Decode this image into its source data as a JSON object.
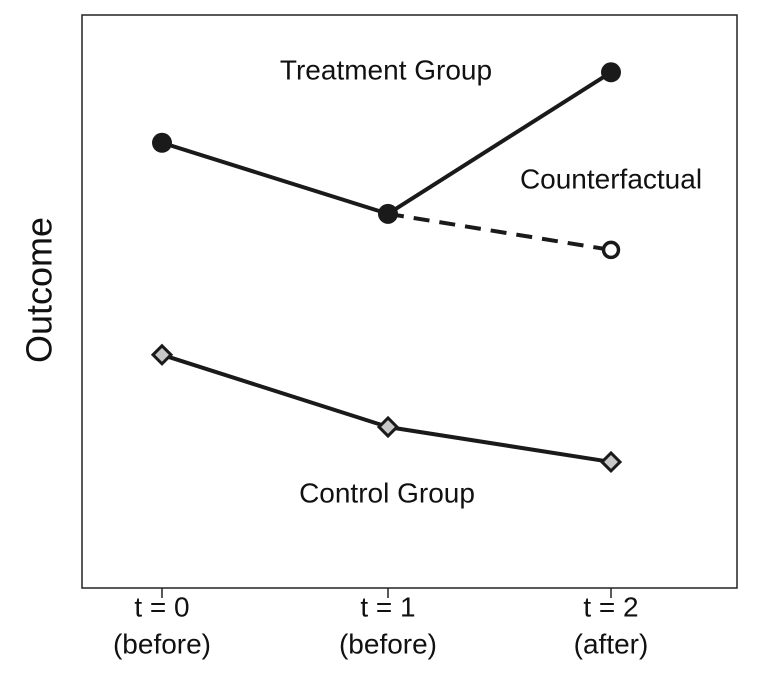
{
  "chart_data": {
    "type": "line",
    "ylabel": "Outcome",
    "categories": [
      "t = 0",
      "t = 1",
      "t = 2"
    ],
    "category_notes": [
      "(before)",
      "(before)",
      "(after)"
    ],
    "ylim": [
      0,
      10
    ],
    "series": [
      {
        "name": "Counterfactual",
        "color": "#1a1a1a",
        "line_style": "dashed",
        "marker": "open-circle",
        "values": [
          null,
          6.53,
          5.9
        ]
      },
      {
        "name": "Treatment Group",
        "color": "#1a1a1a",
        "line_style": "solid",
        "marker": "circle",
        "values": [
          7.77,
          6.53,
          9.0
        ]
      },
      {
        "name": "Control Group",
        "color": "#1a1a1a",
        "line_style": "solid",
        "marker": "diamond",
        "marker_fill": "#c8c8c8",
        "values": [
          4.07,
          2.81,
          2.2
        ]
      }
    ]
  }
}
